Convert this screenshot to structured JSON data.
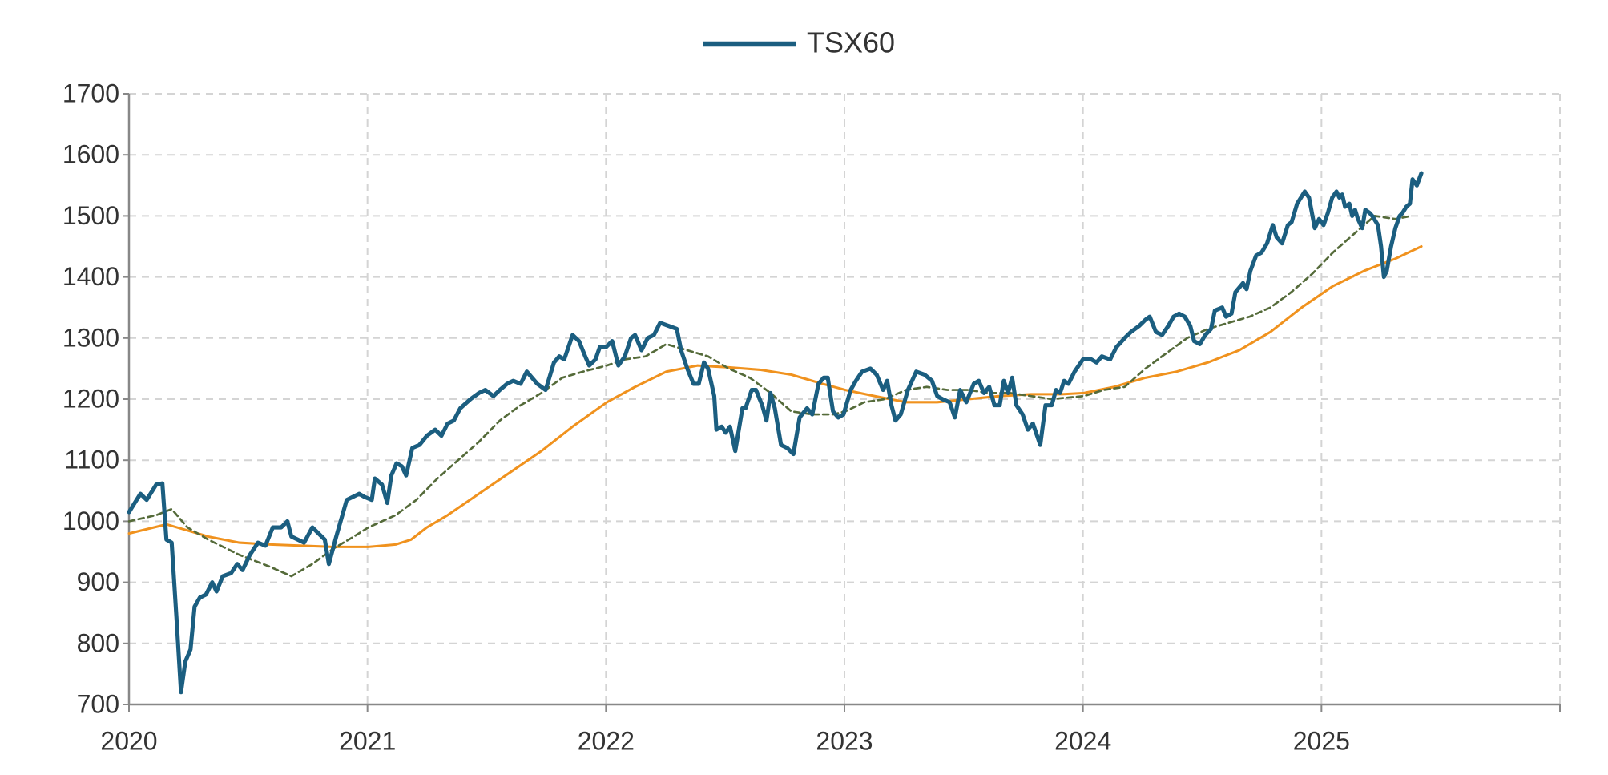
{
  "chart_data": {
    "type": "line",
    "xlim": [
      2020,
      2026
    ],
    "xticks": [
      2020,
      2021,
      2022,
      2023,
      2024,
      2025
    ],
    "ylim": [
      700,
      1700
    ],
    "yticks": [
      700,
      800,
      900,
      1000,
      1100,
      1200,
      1300,
      1400,
      1500,
      1600,
      1700
    ],
    "grid": true,
    "legend": "top",
    "series": [
      {
        "name": "TSX60",
        "color": "#1b5e80",
        "linewidth": 3,
        "x": [
          2020.0,
          2020.048,
          2020.074,
          2020.114,
          2020.14,
          2020.157,
          2020.179,
          2020.201,
          2020.218,
          2020.236,
          2020.258,
          2020.275,
          2020.297,
          2020.323,
          2020.349,
          2020.367,
          2020.393,
          2020.428,
          2020.454,
          2020.476,
          2020.507,
          2020.541,
          2020.572,
          2020.603,
          2020.638,
          2020.664,
          2020.681,
          2020.734,
          2020.769,
          2020.821,
          2020.838,
          2020.869,
          2020.913,
          2020.965,
          2020.987,
          2021.018,
          2021.031,
          2021.061,
          2021.083,
          2021.1,
          2021.122,
          2021.144,
          2021.162,
          2021.188,
          2021.218,
          2021.249,
          2021.284,
          2021.31,
          2021.336,
          2021.362,
          2021.389,
          2021.432,
          2021.467,
          2021.494,
          2021.528,
          2021.555,
          2021.585,
          2021.611,
          2021.642,
          2021.668,
          2021.712,
          2021.747,
          2021.782,
          2021.804,
          2021.825,
          2021.86,
          2021.887,
          2021.913,
          2021.93,
          2021.956,
          2021.974,
          2022.0,
          2022.026,
          2022.052,
          2022.079,
          2022.105,
          2022.122,
          2022.149,
          2022.175,
          2022.201,
          2022.227,
          2022.262,
          2022.297,
          2022.315,
          2022.341,
          2022.367,
          2022.389,
          2022.411,
          2022.428,
          2022.454,
          2022.463,
          2022.485,
          2022.502,
          2022.52,
          2022.542,
          2022.572,
          2022.585,
          2022.611,
          2022.629,
          2022.655,
          2022.673,
          2022.69,
          2022.708,
          2022.734,
          2022.76,
          2022.786,
          2022.812,
          2022.843,
          2022.865,
          2022.891,
          2022.913,
          2022.93,
          2022.952,
          2022.974,
          2022.996,
          2023.026,
          2023.048,
          2023.074,
          2023.109,
          2023.135,
          2023.162,
          2023.179,
          2023.197,
          2023.214,
          2023.236,
          2023.266,
          2023.301,
          2023.336,
          2023.367,
          2023.389,
          2023.411,
          2023.441,
          2023.463,
          2023.485,
          2023.511,
          2023.542,
          2023.563,
          2023.585,
          2023.607,
          2023.629,
          2023.651,
          2023.668,
          2023.686,
          2023.703,
          2023.721,
          2023.747,
          2023.769,
          2023.79,
          2023.821,
          2023.843,
          2023.869,
          2023.887,
          2023.904,
          2023.921,
          2023.939,
          2023.965,
          2024.0,
          2024.035,
          2024.057,
          2024.079,
          2024.114,
          2024.14,
          2024.175,
          2024.201,
          2024.236,
          2024.262,
          2024.28,
          2024.306,
          2024.332,
          2024.358,
          2024.38,
          2024.403,
          2024.427,
          2024.45,
          2024.466,
          2024.49,
          2024.513,
          2024.537,
          2024.553,
          2024.584,
          2024.6,
          2024.623,
          2024.639,
          2024.671,
          2024.686,
          2024.702,
          2024.726,
          2024.749,
          2024.772,
          2024.796,
          2024.812,
          2024.835,
          2024.859,
          2024.875,
          2024.898,
          2024.93,
          2024.948,
          2024.96,
          2024.972,
          2024.99,
          2025.009,
          2025.027,
          2025.045,
          2025.063,
          2025.075,
          2025.087,
          2025.099,
          2025.117,
          2025.129,
          2025.141,
          2025.153,
          2025.171,
          2025.184,
          2025.202,
          2025.213,
          2025.237,
          2025.25,
          2025.262,
          2025.274,
          2025.292,
          2025.31,
          2025.328,
          2025.34,
          2025.356,
          2025.371,
          2025.382,
          2025.4,
          2025.419
        ],
        "values": [
          1015,
          1045,
          1035,
          1060,
          1062,
          970,
          965,
          830,
          720,
          770,
          790,
          860,
          875,
          880,
          900,
          885,
          910,
          915,
          930,
          920,
          945,
          965,
          960,
          990,
          990,
          1000,
          975,
          965,
          990,
          970,
          930,
          975,
          1035,
          1045,
          1040,
          1035,
          1070,
          1060,
          1030,
          1075,
          1095,
          1090,
          1075,
          1120,
          1125,
          1140,
          1150,
          1140,
          1160,
          1165,
          1185,
          1200,
          1210,
          1215,
          1205,
          1215,
          1225,
          1230,
          1225,
          1245,
          1225,
          1215,
          1260,
          1270,
          1265,
          1305,
          1295,
          1270,
          1255,
          1265,
          1285,
          1285,
          1295,
          1255,
          1270,
          1300,
          1305,
          1280,
          1300,
          1305,
          1325,
          1320,
          1315,
          1280,
          1250,
          1225,
          1225,
          1260,
          1250,
          1205,
          1150,
          1155,
          1145,
          1155,
          1115,
          1185,
          1185,
          1215,
          1215,
          1190,
          1165,
          1210,
          1185,
          1125,
          1120,
          1110,
          1170,
          1185,
          1175,
          1225,
          1235,
          1235,
          1180,
          1170,
          1175,
          1215,
          1230,
          1245,
          1250,
          1240,
          1215,
          1230,
          1190,
          1165,
          1175,
          1215,
          1245,
          1240,
          1230,
          1205,
          1200,
          1195,
          1170,
          1215,
          1195,
          1225,
          1230,
          1210,
          1220,
          1190,
          1190,
          1230,
          1210,
          1235,
          1190,
          1175,
          1150,
          1160,
          1125,
          1190,
          1190,
          1215,
          1210,
          1230,
          1225,
          1245,
          1265,
          1265,
          1260,
          1270,
          1265,
          1285,
          1300,
          1310,
          1320,
          1330,
          1335,
          1310,
          1305,
          1320,
          1335,
          1340,
          1335,
          1320,
          1295,
          1290,
          1305,
          1315,
          1345,
          1350,
          1335,
          1340,
          1375,
          1390,
          1380,
          1410,
          1435,
          1440,
          1455,
          1485,
          1465,
          1455,
          1485,
          1490,
          1520,
          1540,
          1530,
          1505,
          1480,
          1495,
          1485,
          1505,
          1530,
          1540,
          1530,
          1535,
          1515,
          1520,
          1500,
          1510,
          1495,
          1480,
          1510,
          1505,
          1500,
          1485,
          1450,
          1400,
          1410,
          1450,
          1480,
          1500,
          1505,
          1515,
          1520,
          1560,
          1550,
          1570
        ]
      },
      {
        "color": "#556b3a",
        "linewidth": 1.6,
        "dashed": true,
        "x": [
          2020.0,
          2020.114,
          2020.179,
          2020.245,
          2020.332,
          2020.463,
          2020.594,
          2020.681,
          2020.769,
          2020.856,
          2020.943,
          2021.004,
          2021.118,
          2021.205,
          2021.293,
          2021.38,
          2021.467,
          2021.555,
          2021.642,
          2021.729,
          2021.817,
          2021.904,
          2022.004,
          2022.079,
          2022.166,
          2022.253,
          2022.341,
          2022.428,
          2022.515,
          2022.603,
          2022.69,
          2022.777,
          2022.865,
          2022.952,
          2023.004,
          2023.083,
          2023.17,
          2023.258,
          2023.345,
          2023.432,
          2023.52,
          2023.607,
          2023.694,
          2023.782,
          2023.869,
          2024.004,
          2024.087,
          2024.175,
          2024.262,
          2024.349,
          2024.437,
          2024.524,
          2024.611,
          2024.699,
          2024.786,
          2024.873,
          2024.961,
          2025.048,
          2025.135,
          2025.223,
          2025.31,
          2025.376
        ],
        "values": [
          1000,
          1010,
          1020,
          990,
          970,
          945,
          925,
          910,
          930,
          955,
          975,
          990,
          1010,
          1035,
          1070,
          1100,
          1130,
          1165,
          1190,
          1210,
          1235,
          1245,
          1255,
          1265,
          1270,
          1290,
          1280,
          1270,
          1250,
          1235,
          1210,
          1180,
          1175,
          1175,
          1180,
          1195,
          1200,
          1215,
          1220,
          1215,
          1215,
          1210,
          1210,
          1205,
          1200,
          1205,
          1215,
          1220,
          1250,
          1275,
          1300,
          1315,
          1325,
          1335,
          1350,
          1375,
          1405,
          1440,
          1470,
          1500,
          1495,
          1500
        ]
      },
      {
        "color": "#f0921e",
        "linewidth": 1.8,
        "x": [
          2020.0,
          2020.157,
          2020.245,
          2020.332,
          2020.463,
          2020.594,
          2020.725,
          2020.856,
          2021.004,
          2021.118,
          2021.183,
          2021.249,
          2021.336,
          2021.467,
          2021.598,
          2021.729,
          2021.86,
          2022.004,
          2022.122,
          2022.253,
          2022.384,
          2022.515,
          2022.646,
          2022.777,
          2022.908,
          2023.004,
          2023.127,
          2023.258,
          2023.389,
          2023.52,
          2023.651,
          2023.782,
          2023.913,
          2024.004,
          2024.131,
          2024.262,
          2024.393,
          2024.524,
          2024.655,
          2024.786,
          2024.917,
          2025.048,
          2025.179,
          2025.31,
          2025.419
        ],
        "values": [
          980,
          995,
          985,
          975,
          965,
          962,
          960,
          958,
          958,
          962,
          970,
          990,
          1010,
          1045,
          1080,
          1115,
          1155,
          1195,
          1220,
          1245,
          1255,
          1252,
          1248,
          1240,
          1225,
          1215,
          1205,
          1195,
          1195,
          1200,
          1205,
          1208,
          1208,
          1210,
          1220,
          1235,
          1245,
          1260,
          1280,
          1310,
          1350,
          1385,
          1410,
          1430,
          1450
        ]
      }
    ]
  }
}
